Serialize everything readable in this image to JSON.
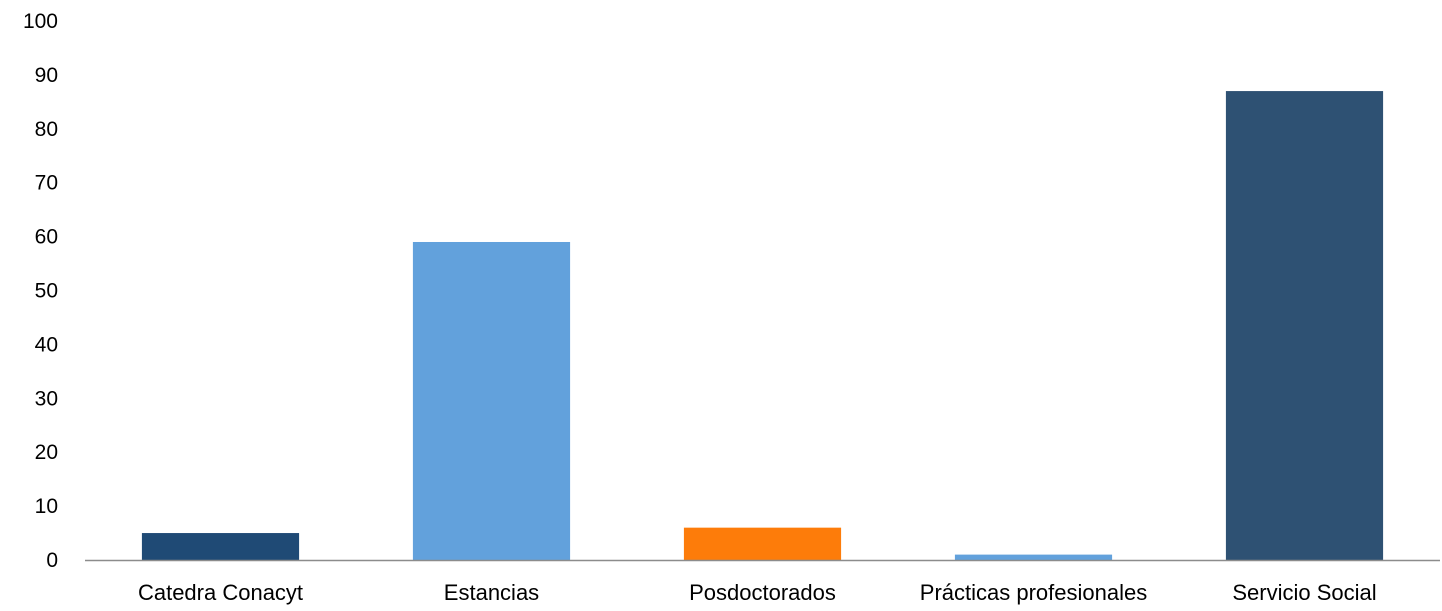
{
  "chart_data": {
    "type": "bar",
    "categories": [
      "Catedra Conacyt",
      "Estancias",
      "Posdoctorados",
      "Prácticas profesionales",
      "Servicio Social"
    ],
    "values": [
      5,
      59,
      6,
      1,
      87
    ],
    "colors": [
      "#1f4a75",
      "#62a1dc",
      "#fd7c0a",
      "#62a1dc",
      "#2e5173"
    ],
    "ylim": [
      0,
      100
    ],
    "yticks": [
      0,
      10,
      20,
      30,
      40,
      50,
      60,
      70,
      80,
      90,
      100
    ],
    "grid": false,
    "legend": "none",
    "axis_color": "#8c8c8c"
  }
}
